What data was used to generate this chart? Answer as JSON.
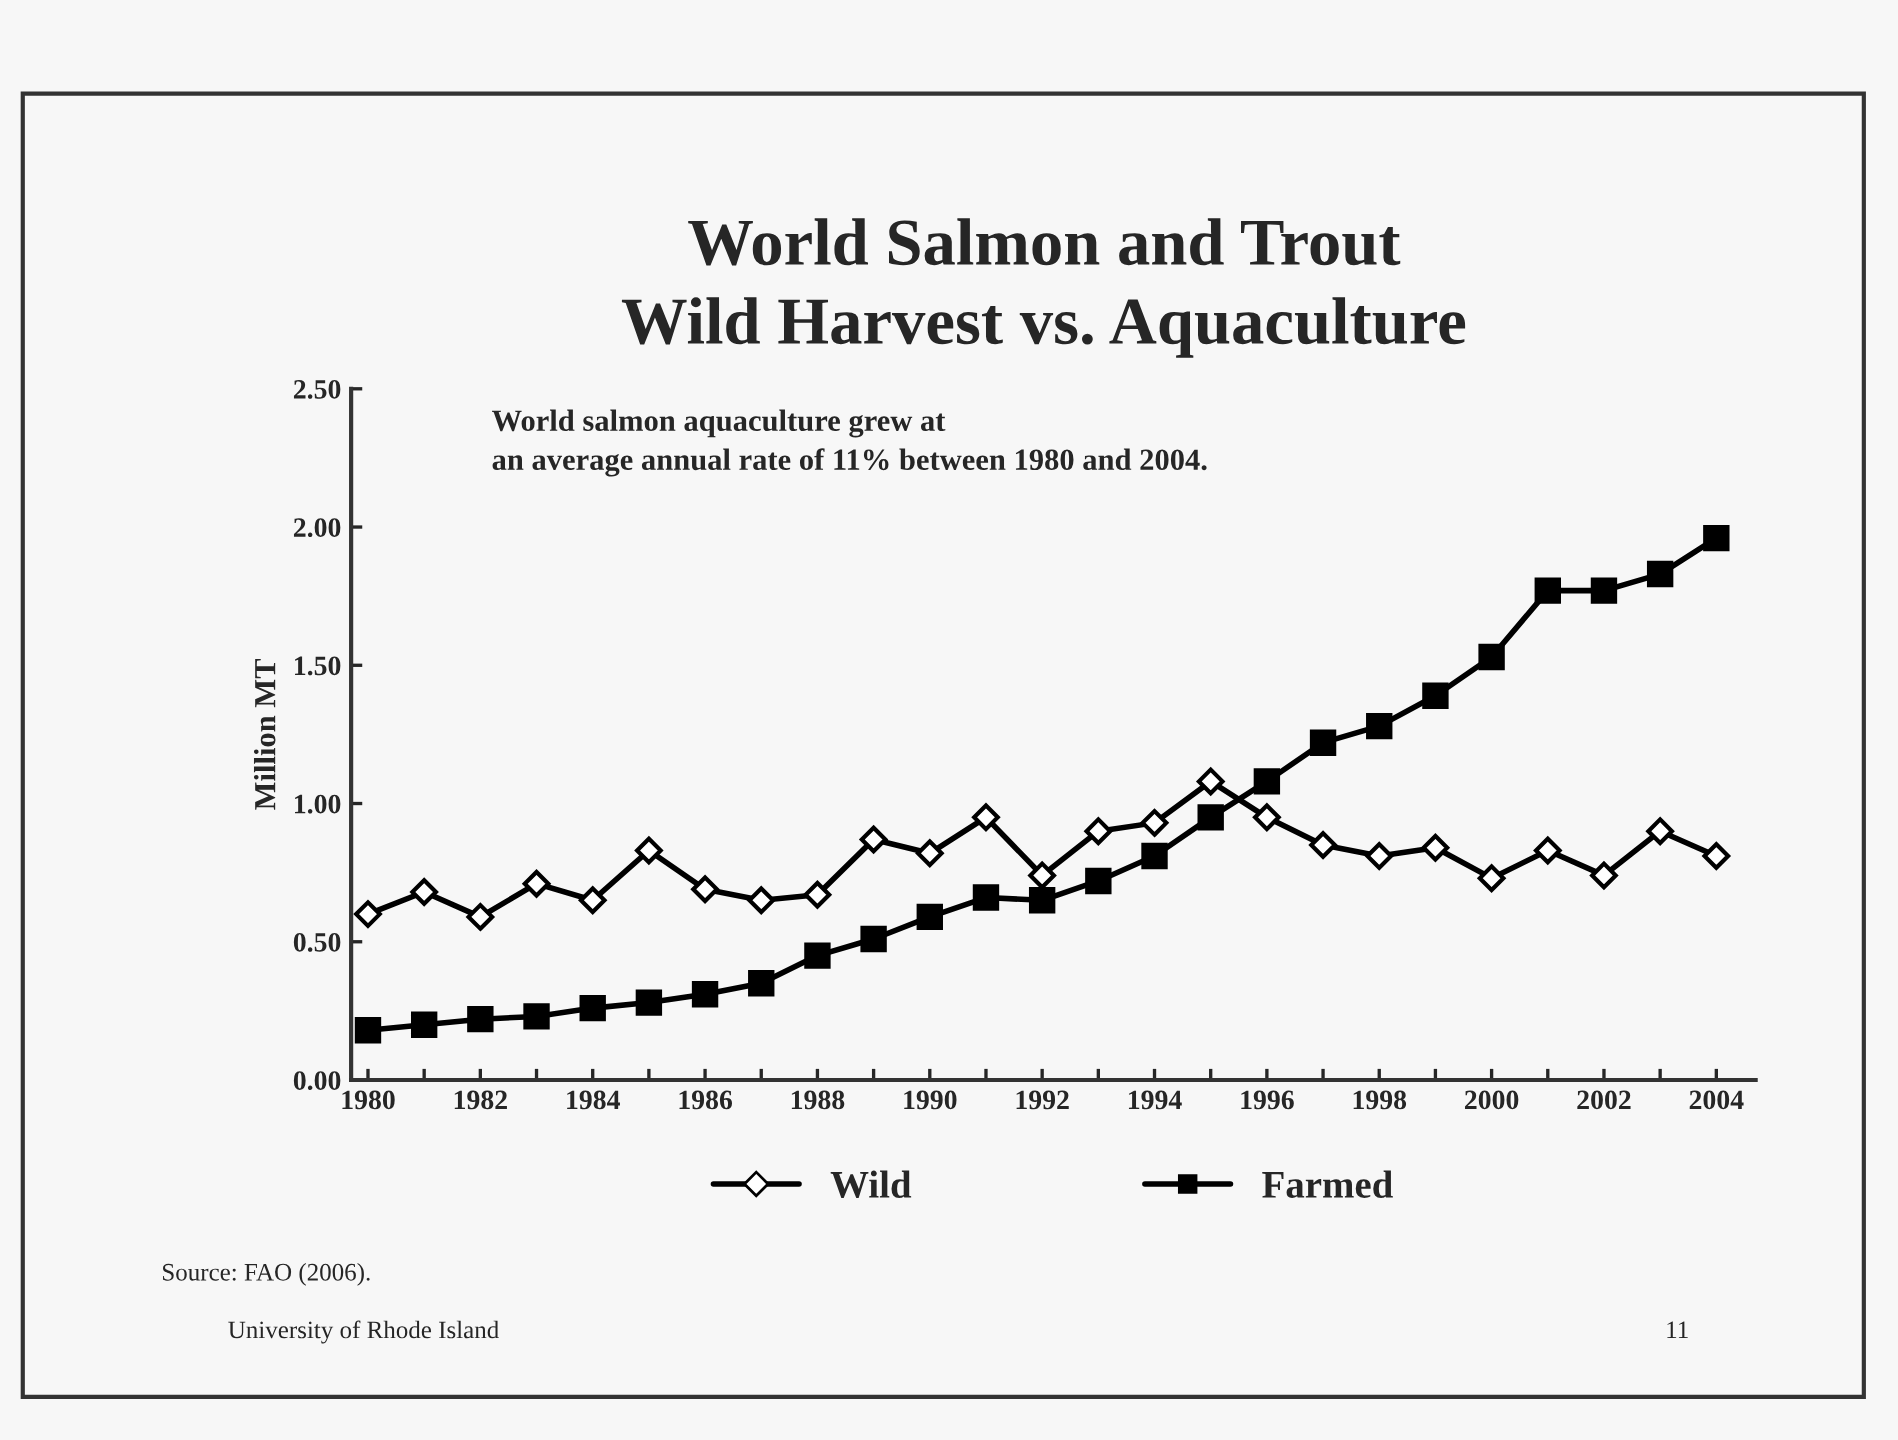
{
  "chart_data": {
    "type": "line",
    "title": "World Salmon and Trout\nWild Harvest vs. Aquaculture",
    "ylabel": "Million MT",
    "x": [
      1980,
      1981,
      1982,
      1983,
      1984,
      1985,
      1986,
      1987,
      1988,
      1989,
      1990,
      1991,
      1992,
      1993,
      1994,
      1995,
      1996,
      1997,
      1998,
      1999,
      2000,
      2001,
      2002,
      2003,
      2004
    ],
    "series": [
      {
        "name": "Wild",
        "color": "#000000",
        "marker": "diamond",
        "values": [
          0.6,
          0.68,
          0.59,
          0.71,
          0.65,
          0.83,
          0.69,
          0.65,
          0.67,
          0.87,
          0.82,
          0.95,
          0.74,
          0.9,
          0.93,
          1.08,
          0.95,
          0.85,
          0.81,
          0.84,
          0.73,
          0.83,
          0.74,
          0.9,
          0.81
        ]
      },
      {
        "name": "Farmed",
        "color": "#000000",
        "marker": "square",
        "values": [
          0.18,
          0.2,
          0.22,
          0.23,
          0.26,
          0.28,
          0.31,
          0.35,
          0.45,
          0.51,
          0.59,
          0.66,
          0.65,
          0.72,
          0.81,
          0.95,
          1.08,
          1.22,
          1.28,
          1.39,
          1.53,
          1.77,
          1.77,
          1.83,
          1.96
        ]
      }
    ],
    "xlim": [
      1979.7,
      2004.7
    ],
    "xticks": [
      1980,
      {
        "value": 1981,
        "label": null
      },
      1982,
      {
        "value": 1983,
        "label": null
      },
      1984,
      {
        "value": 1985,
        "label": null
      },
      1986,
      {
        "value": 1987,
        "label": null
      },
      1988,
      {
        "value": 1989,
        "label": null
      },
      1990,
      {
        "value": 1991,
        "label": null
      },
      1992,
      {
        "value": 1993,
        "label": null
      },
      1994,
      {
        "value": 1995,
        "label": null
      },
      1996,
      {
        "value": 1997,
        "label": null
      },
      1998,
      {
        "value": 1999,
        "label": null
      },
      2000,
      {
        "value": 2001,
        "label": null
      },
      2002,
      {
        "value": 2003,
        "label": null
      },
      2004
    ],
    "ylim": [
      0,
      2.5
    ],
    "yticks": [
      {
        "value": 0,
        "label": "0.00"
      },
      {
        "value": 0.5,
        "label": "0.50"
      },
      {
        "value": 1.0,
        "label": "1.00"
      },
      {
        "value": 1.5,
        "label": "1.50"
      },
      {
        "value": 2.0,
        "label": "2.00"
      },
      {
        "value": 2.5,
        "label": "2.50"
      }
    ],
    "grid": false,
    "legend": "bottom",
    "line_style": "solid",
    "annotations": [
      "World salmon aquaculture grew at\nan average annual rate of 11% between 1980 and 2004.",
      "Source: FAO (2006).",
      "University of Rhode Island",
      "11"
    ]
  }
}
